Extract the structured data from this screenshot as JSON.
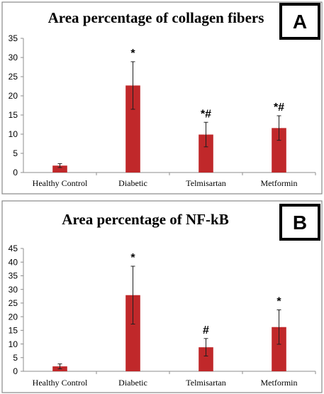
{
  "chart_data": [
    {
      "panel_label": "A",
      "type": "bar",
      "title": "Area percentage of collagen fibers",
      "xlabel": "",
      "ylabel": "",
      "categories": [
        "Healthy Control",
        "Diabetic",
        "Telmisartan",
        "Metformin"
      ],
      "values": [
        1.8,
        22.7,
        9.9,
        11.6
      ],
      "error": [
        0.5,
        6.2,
        3.2,
        3.2
      ],
      "annotations": [
        "",
        "*",
        "*#",
        "*#"
      ],
      "ylim": [
        0,
        35
      ],
      "yticks": [
        0,
        5,
        10,
        15,
        20,
        25,
        30,
        35
      ],
      "grid": false,
      "legend": "none",
      "bar_color": "#c0282a",
      "error_color": "#1f1f1f"
    },
    {
      "panel_label": "B",
      "type": "bar",
      "title": "Area percentage of NF-kB",
      "xlabel": "",
      "ylabel": "",
      "categories": [
        "Healthy Control",
        "Diabetic",
        "Telmisartan",
        "Metformin"
      ],
      "values": [
        1.8,
        27.9,
        8.8,
        16.2
      ],
      "error": [
        0.9,
        10.6,
        3.2,
        6.3
      ],
      "annotations": [
        "",
        "*",
        "#",
        "*"
      ],
      "ylim": [
        0,
        45
      ],
      "yticks": [
        0,
        5,
        10,
        15,
        20,
        25,
        30,
        35,
        40,
        45
      ],
      "grid": false,
      "legend": "none",
      "bar_color": "#c0282a",
      "error_color": "#1f1f1f"
    }
  ]
}
